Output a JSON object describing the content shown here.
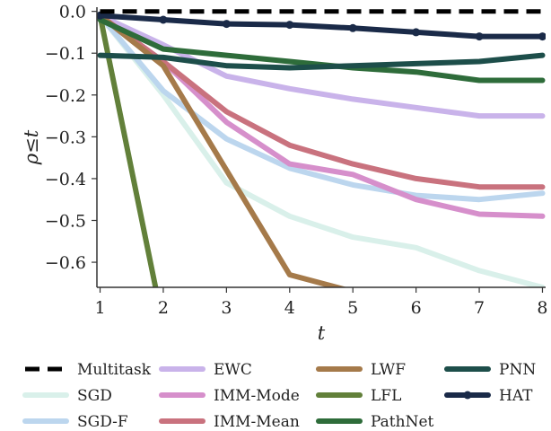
{
  "chart_data": {
    "type": "line",
    "xlabel": "t",
    "ylabel": "ρ≤t",
    "xlim": [
      0.95,
      8.05
    ],
    "ylim": [
      -0.66,
      0.01
    ],
    "x_ticks": [
      1,
      2,
      3,
      4,
      5,
      6,
      7,
      8
    ],
    "y_ticks": [
      0.0,
      -0.1,
      -0.2,
      -0.3,
      -0.4,
      -0.5,
      -0.6
    ],
    "y_tick_labels": [
      "0.0",
      "−0.1",
      "−0.2",
      "−0.3",
      "−0.4",
      "−0.5",
      "−0.6"
    ],
    "grid": false,
    "legend_position": "bottom",
    "series": [
      {
        "name": "Multitask",
        "color": "#000000",
        "dashed": true,
        "markers": false,
        "x": [
          1,
          8
        ],
        "y": [
          0.0,
          0.0
        ]
      },
      {
        "name": "SGD",
        "color": "#d9f0ea",
        "markers": false,
        "x": [
          1,
          2,
          3,
          4,
          5,
          6,
          7,
          8
        ],
        "y": [
          -0.01,
          -0.2,
          -0.41,
          -0.49,
          -0.54,
          -0.565,
          -0.62,
          -0.66
        ]
      },
      {
        "name": "SGD-F",
        "color": "#bcd6ee",
        "markers": false,
        "x": [
          1,
          2,
          3,
          4,
          5,
          6,
          7,
          8
        ],
        "y": [
          -0.01,
          -0.19,
          -0.305,
          -0.375,
          -0.415,
          -0.44,
          -0.45,
          -0.435
        ]
      },
      {
        "name": "EWC",
        "color": "#c9b3ea",
        "markers": false,
        "x": [
          1,
          2,
          3,
          4,
          5,
          6,
          7,
          8
        ],
        "y": [
          -0.01,
          -0.08,
          -0.155,
          -0.185,
          -0.21,
          -0.23,
          -0.25,
          -0.25
        ]
      },
      {
        "name": "IMM-Mode",
        "color": "#d68fcb",
        "markers": false,
        "x": [
          1,
          2,
          3,
          4,
          5,
          6,
          7,
          8
        ],
        "y": [
          -0.01,
          -0.12,
          -0.265,
          -0.365,
          -0.39,
          -0.45,
          -0.485,
          -0.49
        ]
      },
      {
        "name": "IMM-Mean",
        "color": "#c9727e",
        "markers": false,
        "x": [
          1,
          2,
          3,
          4,
          5,
          6,
          7,
          8
        ],
        "y": [
          -0.01,
          -0.12,
          -0.24,
          -0.32,
          -0.365,
          -0.4,
          -0.42,
          -0.42
        ]
      },
      {
        "name": "LWF",
        "color": "#a57a4a",
        "markers": false,
        "x": [
          1,
          2,
          3,
          4,
          5,
          6
        ],
        "y": [
          -0.01,
          -0.13,
          -0.38,
          -0.63,
          -0.67,
          -0.75
        ]
      },
      {
        "name": "LFL",
        "color": "#62803a",
        "markers": false,
        "x": [
          1,
          2
        ],
        "y": [
          -0.01,
          -0.75
        ]
      },
      {
        "name": "PathNet",
        "color": "#2e6c3a",
        "markers": false,
        "x": [
          1,
          2,
          3,
          4,
          5,
          6,
          7,
          8
        ],
        "y": [
          -0.02,
          -0.09,
          -0.105,
          -0.12,
          -0.135,
          -0.145,
          -0.165,
          -0.165
        ]
      },
      {
        "name": "PNN",
        "color": "#1d4e4a",
        "markers": false,
        "x": [
          1,
          2,
          3,
          4,
          5,
          6,
          7,
          8
        ],
        "y": [
          -0.105,
          -0.11,
          -0.13,
          -0.135,
          -0.13,
          -0.125,
          -0.12,
          -0.105
        ]
      },
      {
        "name": "HAT",
        "color": "#1a2a48",
        "markers": true,
        "x": [
          1,
          2,
          3,
          4,
          5,
          6,
          7,
          8
        ],
        "y": [
          -0.01,
          -0.02,
          -0.03,
          -0.032,
          -0.04,
          -0.05,
          -0.06,
          -0.06
        ]
      }
    ],
    "legend_order": [
      [
        "Multitask",
        "SGD",
        "SGD-F"
      ],
      [
        "EWC",
        "IMM-Mode",
        "IMM-Mean"
      ],
      [
        "LWF",
        "LFL",
        "PathNet"
      ],
      [
        "PNN",
        "HAT"
      ]
    ]
  }
}
